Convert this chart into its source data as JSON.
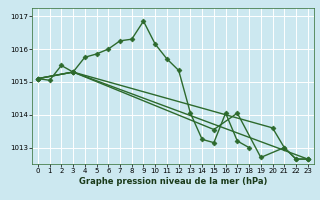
{
  "title": "Graphe pression niveau de la mer (hPa)",
  "bg_color": "#cce8f0",
  "grid_color": "#ffffff",
  "line_color": "#2d6a2d",
  "ylim": [
    1012.5,
    1017.25
  ],
  "yticks": [
    1013,
    1014,
    1015,
    1016,
    1017
  ],
  "xlim": [
    -0.5,
    23.5
  ],
  "xticks": [
    0,
    1,
    2,
    3,
    4,
    5,
    6,
    7,
    8,
    9,
    10,
    11,
    12,
    13,
    14,
    15,
    16,
    17,
    18,
    19,
    20,
    21,
    22,
    23
  ],
  "series": [
    {
      "points": [
        [
          0,
          1015.1
        ],
        [
          1,
          1015.05
        ],
        [
          2,
          1015.5
        ],
        [
          3,
          1015.3
        ],
        [
          4,
          1015.75
        ],
        [
          5,
          1015.85
        ],
        [
          6,
          1016.0
        ],
        [
          7,
          1016.25
        ],
        [
          8,
          1016.3
        ],
        [
          9,
          1016.85
        ],
        [
          10,
          1016.15
        ],
        [
          11,
          1015.7
        ],
        [
          12,
          1015.35
        ],
        [
          13,
          1014.05
        ],
        [
          14,
          1013.25
        ],
        [
          15,
          1013.15
        ],
        [
          16,
          1014.05
        ],
        [
          17,
          1013.2
        ],
        [
          18,
          1013.0
        ]
      ]
    },
    {
      "points": [
        [
          0,
          1015.1
        ],
        [
          3,
          1015.3
        ],
        [
          23,
          1012.65
        ]
      ]
    },
    {
      "points": [
        [
          0,
          1015.1
        ],
        [
          3,
          1015.3
        ],
        [
          15,
          1013.55
        ],
        [
          17,
          1014.05
        ],
        [
          19,
          1012.7
        ],
        [
          21,
          1013.0
        ],
        [
          22,
          1012.65
        ],
        [
          23,
          1012.65
        ]
      ]
    },
    {
      "points": [
        [
          0,
          1015.1
        ],
        [
          3,
          1015.3
        ],
        [
          20,
          1013.6
        ],
        [
          21,
          1013.0
        ],
        [
          22,
          1012.65
        ],
        [
          23,
          1012.65
        ]
      ]
    }
  ],
  "marker": "D",
  "markersize": 2.5,
  "linewidth": 1.0
}
